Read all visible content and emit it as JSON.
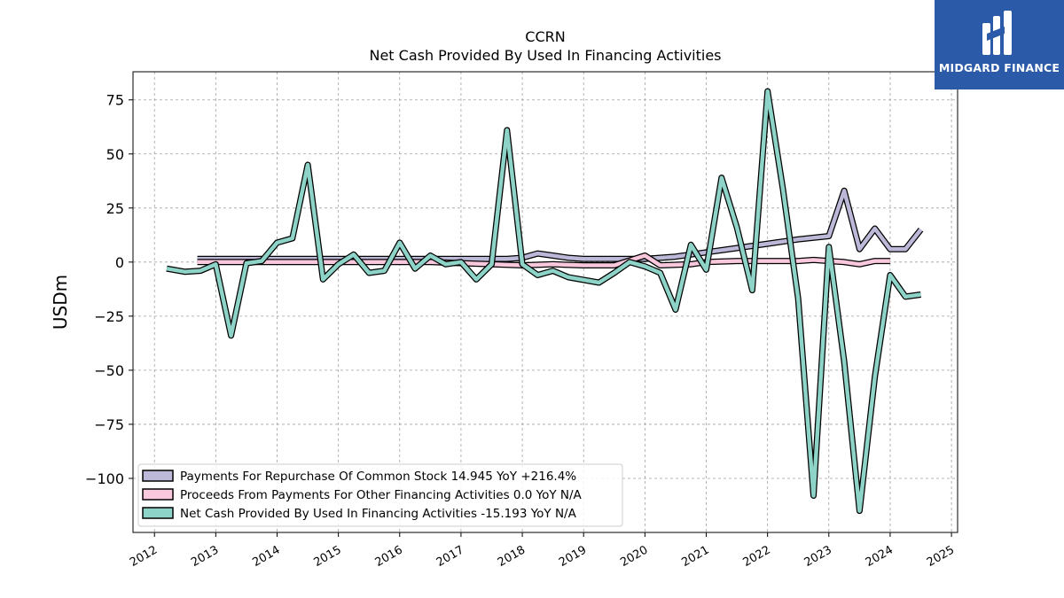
{
  "logo": {
    "text": "MIDGARD FINANCE",
    "background": "#2b5aa8"
  },
  "chart_data": {
    "type": "line",
    "title": "CCRN",
    "subtitle": "Net Cash Provided By Used In Financing Activities",
    "ylabel": "USDm",
    "xlabel": "",
    "xlim": [
      2011.65,
      2025.1
    ],
    "ylim": [
      -125,
      88
    ],
    "grid": true,
    "legend_position": "lower-left",
    "x_ticks": [
      2012,
      2013,
      2014,
      2015,
      2016,
      2017,
      2018,
      2019,
      2020,
      2021,
      2022,
      2023,
      2024,
      2025
    ],
    "y_ticks": [
      75,
      50,
      25,
      0,
      -25,
      -50,
      -75,
      -100
    ],
    "y_tick_labels": [
      "75",
      "50",
      "25",
      "0",
      "−25",
      "−50",
      "−75",
      "−100"
    ],
    "series": [
      {
        "name": "Payments For Repurchase Of Common Stock",
        "legend": "Payments For Repurchase Of Common Stock  14.945 YoY +216.4%",
        "color": "#bcb8d8",
        "points": [
          [
            2012.7,
            1.5
          ],
          [
            2013.0,
            1.5
          ],
          [
            2013.5,
            1.5
          ],
          [
            2014.0,
            1.5
          ],
          [
            2014.5,
            1.5
          ],
          [
            2015.0,
            1.5
          ],
          [
            2015.5,
            1.5
          ],
          [
            2016.0,
            1.5
          ],
          [
            2016.5,
            1.5
          ],
          [
            2017.0,
            1.5
          ],
          [
            2017.5,
            1.5
          ],
          [
            2017.75,
            1.5
          ],
          [
            2018.0,
            2
          ],
          [
            2018.25,
            4
          ],
          [
            2018.5,
            3
          ],
          [
            2018.75,
            2
          ],
          [
            2019.0,
            1.5
          ],
          [
            2019.5,
            1.5
          ],
          [
            2020.0,
            1.5
          ],
          [
            2020.5,
            2.5
          ],
          [
            2020.75,
            3.5
          ],
          [
            2021.0,
            4.5
          ],
          [
            2021.5,
            6.5
          ],
          [
            2022.0,
            8.5
          ],
          [
            2022.5,
            10.5
          ],
          [
            2023.0,
            12
          ],
          [
            2023.25,
            33
          ],
          [
            2023.5,
            6
          ],
          [
            2023.75,
            15.5
          ],
          [
            2024.0,
            6
          ],
          [
            2024.25,
            6
          ],
          [
            2024.5,
            15
          ]
        ]
      },
      {
        "name": "Proceeds From Payments For Other Financing Activities",
        "legend": "Proceeds From Payments For Other Financing Activities  0.0 YoY N/A",
        "color": "#f9c8dc",
        "points": [
          [
            2012.7,
            0
          ],
          [
            2013.5,
            0
          ],
          [
            2014.5,
            0
          ],
          [
            2015.5,
            0
          ],
          [
            2016.5,
            0
          ],
          [
            2017.5,
            -1
          ],
          [
            2018.0,
            -1.5
          ],
          [
            2018.5,
            -1
          ],
          [
            2019.0,
            -1.5
          ],
          [
            2019.5,
            -1.5
          ],
          [
            2020.0,
            3
          ],
          [
            2020.25,
            -1.5
          ],
          [
            2020.75,
            -1
          ],
          [
            2021.0,
            0
          ],
          [
            2021.5,
            0.5
          ],
          [
            2022.0,
            0.5
          ],
          [
            2022.5,
            0.5
          ],
          [
            2022.75,
            1
          ],
          [
            2023.0,
            0.5
          ],
          [
            2023.25,
            0
          ],
          [
            2023.5,
            -1
          ],
          [
            2023.75,
            0.5
          ],
          [
            2024.0,
            0.5
          ]
        ]
      },
      {
        "name": "Net Cash Provided By Used In Financing Activities",
        "legend": "Net Cash Provided By Used In Financing Activities  -15.193 YoY N/A",
        "color": "#8dd3c7",
        "points": [
          [
            2012.2,
            -3
          ],
          [
            2012.5,
            -4.5
          ],
          [
            2012.75,
            -4
          ],
          [
            2013.0,
            -1
          ],
          [
            2013.25,
            -34
          ],
          [
            2013.5,
            -0.5
          ],
          [
            2013.75,
            0.5
          ],
          [
            2014.0,
            9
          ],
          [
            2014.25,
            11
          ],
          [
            2014.5,
            45
          ],
          [
            2014.75,
            -8
          ],
          [
            2015.0,
            -1
          ],
          [
            2015.25,
            3.5
          ],
          [
            2015.5,
            -5
          ],
          [
            2015.75,
            -4
          ],
          [
            2016.0,
            9
          ],
          [
            2016.25,
            -3
          ],
          [
            2016.5,
            3
          ],
          [
            2016.75,
            -1
          ],
          [
            2017.0,
            0
          ],
          [
            2017.25,
            -8
          ],
          [
            2017.5,
            -1
          ],
          [
            2017.75,
            61
          ],
          [
            2018.0,
            -1
          ],
          [
            2018.25,
            -6
          ],
          [
            2018.5,
            -4
          ],
          [
            2018.75,
            -7
          ],
          [
            2019.25,
            -9.5
          ],
          [
            2019.5,
            -5
          ],
          [
            2019.75,
            0
          ],
          [
            2020.0,
            -2
          ],
          [
            2020.25,
            -5
          ],
          [
            2020.5,
            -22
          ],
          [
            2020.75,
            8
          ],
          [
            2021.0,
            -3.5
          ],
          [
            2021.25,
            39
          ],
          [
            2021.5,
            16
          ],
          [
            2021.75,
            -13
          ],
          [
            2022.0,
            79
          ],
          [
            2022.25,
            34
          ],
          [
            2022.5,
            -17
          ],
          [
            2022.75,
            -108
          ],
          [
            2023.0,
            7
          ],
          [
            2023.25,
            -46
          ],
          [
            2023.5,
            -115
          ],
          [
            2023.75,
            -53
          ],
          [
            2024.0,
            -6
          ],
          [
            2024.25,
            -16
          ],
          [
            2024.5,
            -15
          ]
        ]
      }
    ]
  }
}
